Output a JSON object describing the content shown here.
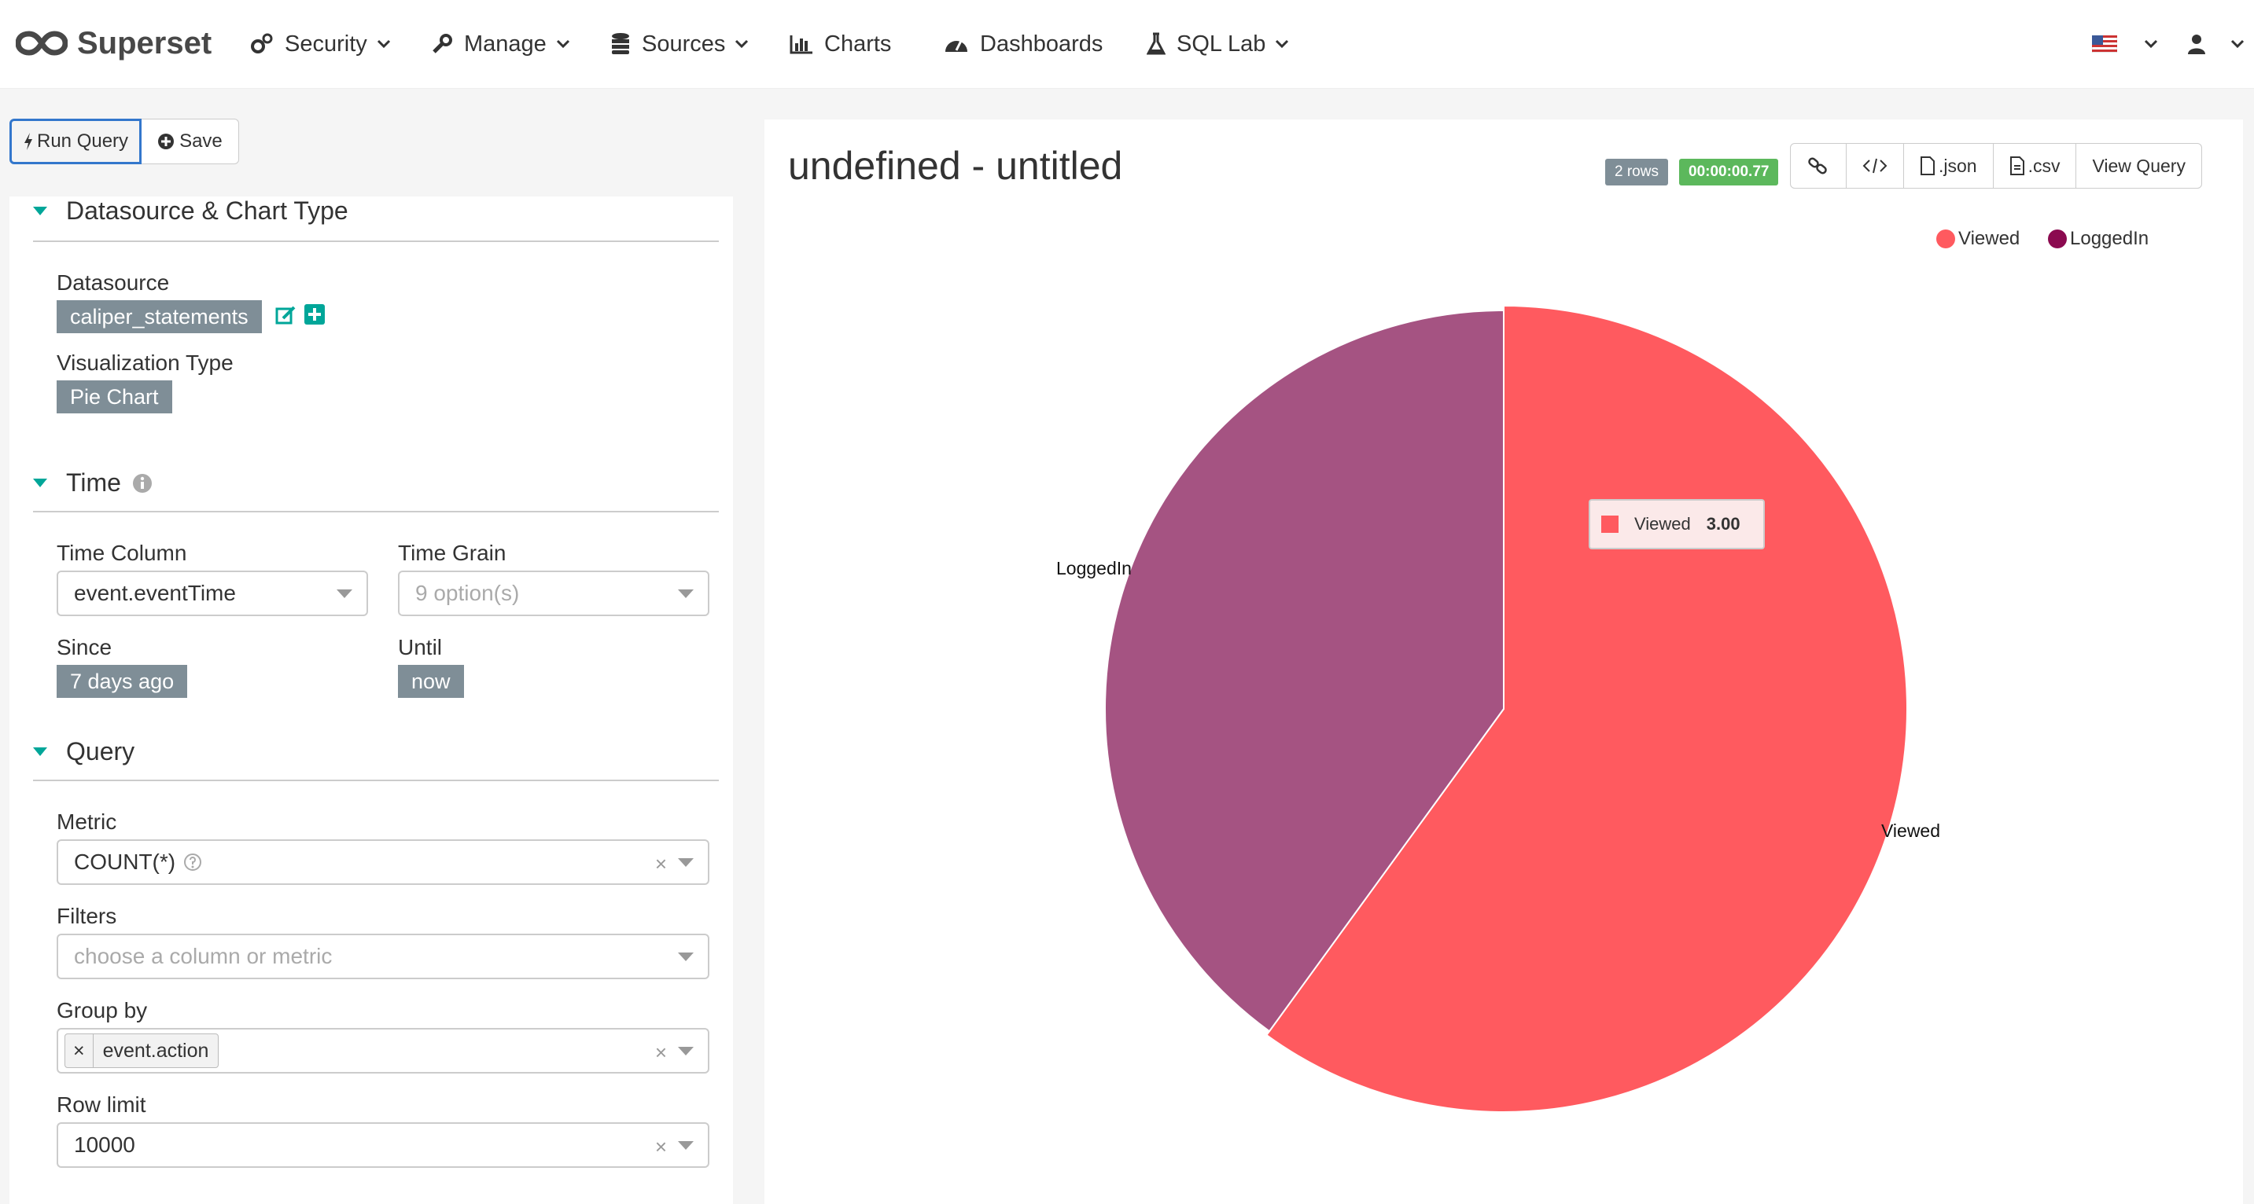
{
  "app": {
    "name": "Superset"
  },
  "nav": {
    "security": "Security",
    "manage": "Manage",
    "sources": "Sources",
    "charts": "Charts",
    "dashboards": "Dashboards",
    "sql_lab": "SQL Lab"
  },
  "toolbar": {
    "run_query": "Run Query",
    "save": "Save"
  },
  "sections": {
    "datasource": {
      "title": "Datasource & Chart Type",
      "datasource_label": "Datasource",
      "datasource_value": "caliper_statements",
      "viz_label": "Visualization Type",
      "viz_value": "Pie Chart"
    },
    "time": {
      "title": "Time",
      "time_column_label": "Time Column",
      "time_column_value": "event.eventTime",
      "time_grain_label": "Time Grain",
      "time_grain_placeholder": "9 option(s)",
      "since_label": "Since",
      "since_value": "7 days ago",
      "until_label": "Until",
      "until_value": "now"
    },
    "query": {
      "title": "Query",
      "metric_label": "Metric",
      "metric_value": "COUNT(*)",
      "filters_label": "Filters",
      "filters_placeholder": "choose a column or metric",
      "group_by_label": "Group by",
      "group_by_value": "event.action",
      "row_limit_label": "Row limit",
      "row_limit_value": "10000"
    }
  },
  "chart_header": {
    "title": "undefined - untitled",
    "rows_badge": "2 rows",
    "time_badge": "00:00:00.77",
    "json_btn": ".json",
    "csv_btn": ".csv",
    "view_query_btn": "View Query"
  },
  "tooltip": {
    "label": "Viewed",
    "value": "3.00"
  },
  "colors": {
    "viewed": "#ff5a5f",
    "loggedin": "#a55382",
    "loggedin_legend": "#8b0a50",
    "accent": "#00a699"
  },
  "chart_data": {
    "type": "pie",
    "title": "",
    "slices": [
      {
        "label": "Viewed",
        "value": 3
      },
      {
        "label": "LoggedIn",
        "value": 2
      }
    ],
    "legend": [
      "Viewed",
      "LoggedIn"
    ],
    "legend_position": "top-right"
  }
}
